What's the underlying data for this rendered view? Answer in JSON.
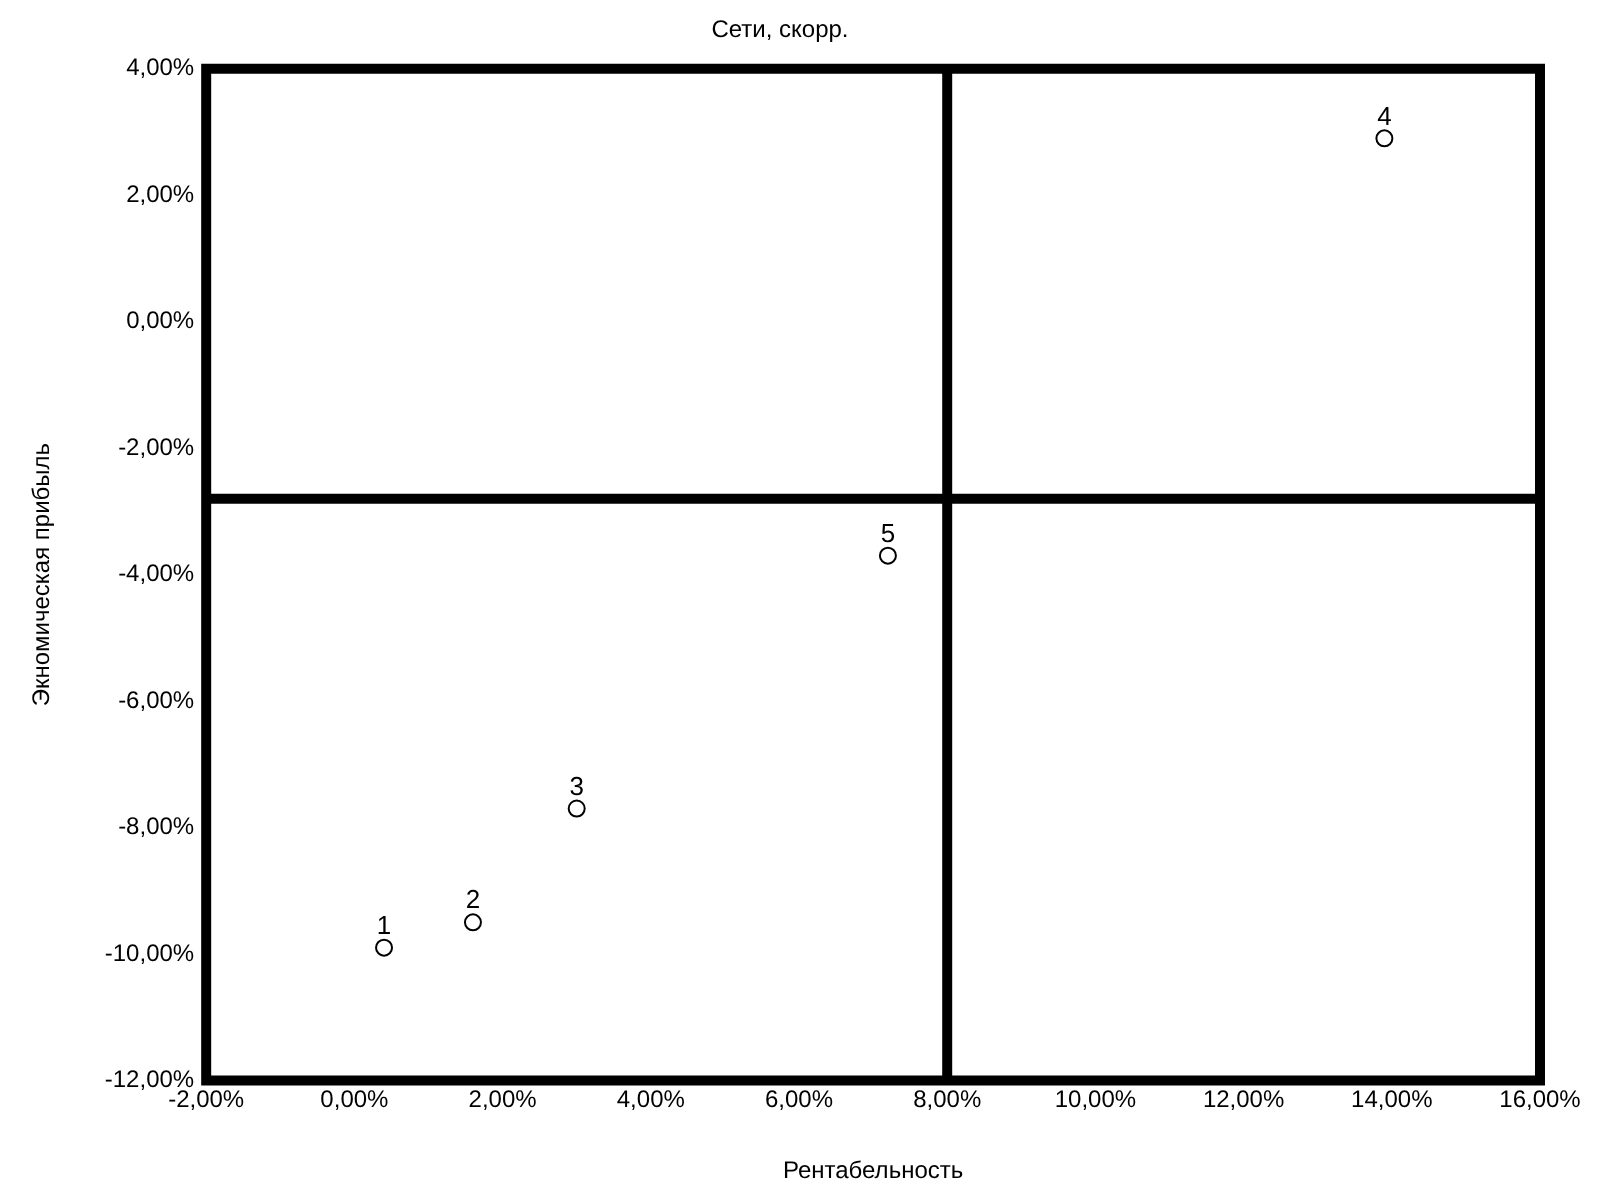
{
  "chart_data": {
    "type": "scatter",
    "title": "Сети, скорр.",
    "xlabel": "Рентабельность",
    "ylabel": "Экномическая прибыль",
    "x": [
      0.4,
      1.6,
      3.0,
      13.9,
      7.2
    ],
    "values": [
      -9.9,
      -9.5,
      -7.7,
      2.9,
      -3.7
    ],
    "annotations": [
      {
        "text": "1",
        "x": 0.4,
        "y": -9.9
      },
      {
        "text": "2",
        "x": 1.6,
        "y": -9.5
      },
      {
        "text": "3",
        "x": 3.0,
        "y": -7.7
      },
      {
        "text": "4",
        "x": 13.9,
        "y": 2.9
      },
      {
        "text": "5",
        "x": 7.2,
        "y": -3.7
      }
    ],
    "color": "#000000",
    "marker": "circle",
    "grid": false,
    "legend": false,
    "xlim": [
      -2,
      16
    ],
    "xticks": [
      {
        "value": -2,
        "label": "-2,00%"
      },
      {
        "value": 0,
        "label": "0,00%"
      },
      {
        "value": 2,
        "label": "2,00%"
      },
      {
        "value": 4,
        "label": "4,00%"
      },
      {
        "value": 6,
        "label": "6,00%"
      },
      {
        "value": 8,
        "label": "8,00%"
      },
      {
        "value": 10,
        "label": "10,00%"
      },
      {
        "value": 12,
        "label": "12,00%"
      },
      {
        "value": 14,
        "label": "14,00%"
      },
      {
        "value": 16,
        "label": "16,00%"
      }
    ],
    "ylim": [
      -12,
      4
    ],
    "yticks": [
      {
        "value": -12,
        "label": "-12,00%"
      },
      {
        "value": -10,
        "label": "-10,00%"
      },
      {
        "value": -8,
        "label": "-8,00%"
      },
      {
        "value": -6,
        "label": "-6,00%"
      },
      {
        "value": -4,
        "label": "-4,00%"
      },
      {
        "value": -2,
        "label": "-2,00%"
      },
      {
        "value": 0,
        "label": "0,00%"
      },
      {
        "value": 2,
        "label": "2,00%"
      },
      {
        "value": 4,
        "label": "4,00%"
      }
    ],
    "ref_lines": [
      {
        "axis": "x",
        "value": 8,
        "color": "#000000"
      },
      {
        "axis": "y",
        "value": -2.8,
        "color": "#000000"
      }
    ]
  }
}
